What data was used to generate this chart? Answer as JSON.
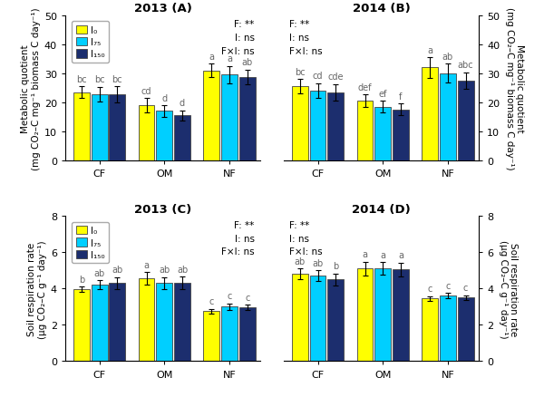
{
  "colors": [
    "#FFFF00",
    "#00CFFF",
    "#1C2E6E"
  ],
  "categories": [
    "CF",
    "OM",
    "NF"
  ],
  "bar_width": 0.22,
  "panel_A": {
    "title": "2013 (A)",
    "ylabel": "Metabolic quotient\n(mg CO₂–C mg⁻¹ biomass C day⁻¹)",
    "ylim": [
      0,
      50
    ],
    "yticks": [
      0,
      10,
      20,
      30,
      40,
      50
    ],
    "stats_text": "F: **\nI: ns\nF×I: ns",
    "stats_align": "right",
    "has_legend": true,
    "values": [
      [
        23.5,
        22.8,
        22.7
      ],
      [
        19.0,
        17.0,
        15.5
      ],
      [
        31.0,
        29.5,
        28.8
      ]
    ],
    "errors": [
      [
        2.0,
        2.5,
        2.8
      ],
      [
        2.5,
        2.0,
        1.8
      ],
      [
        2.2,
        3.0,
        2.5
      ]
    ],
    "labels": [
      [
        "bc",
        "bc",
        "bc"
      ],
      [
        "cd",
        "d",
        "d"
      ],
      [
        "a",
        "a",
        "ab"
      ]
    ]
  },
  "panel_B": {
    "title": "2014 (B)",
    "ylabel": "Metabolic quotient\n(mg CO₂–C mg⁻¹ biomass C day⁻¹)",
    "ylim": [
      0,
      50
    ],
    "yticks": [
      0,
      10,
      20,
      30,
      40,
      50
    ],
    "stats_text": "F: **\nI: ns\nF×I: ns",
    "stats_align": "left",
    "has_legend": false,
    "values": [
      [
        25.5,
        24.0,
        23.5
      ],
      [
        20.5,
        18.5,
        17.5
      ],
      [
        32.0,
        30.0,
        27.5
      ]
    ],
    "errors": [
      [
        2.5,
        2.5,
        2.8
      ],
      [
        2.2,
        2.0,
        2.0
      ],
      [
        3.5,
        3.2,
        2.8
      ]
    ],
    "labels": [
      [
        "bc",
        "cd",
        "cde"
      ],
      [
        "def",
        "ef",
        "f"
      ],
      [
        "a",
        "ab",
        "abc"
      ]
    ]
  },
  "panel_C": {
    "title": "2013 (C)",
    "ylabel": "Soil respiration rate\n(μg CO₂–C g⁻¹ day⁻¹)",
    "ylim": [
      0,
      8
    ],
    "yticks": [
      0,
      2,
      4,
      6,
      8
    ],
    "stats_text": "F: **\nI: ns\nF×I: ns",
    "stats_align": "right",
    "has_legend": true,
    "values": [
      [
        3.95,
        4.2,
        4.3
      ],
      [
        4.55,
        4.3,
        4.3
      ],
      [
        2.75,
        3.0,
        2.95
      ]
    ],
    "errors": [
      [
        0.15,
        0.25,
        0.32
      ],
      [
        0.35,
        0.32,
        0.35
      ],
      [
        0.12,
        0.18,
        0.15
      ]
    ],
    "labels": [
      [
        "b",
        "ab",
        "ab"
      ],
      [
        "a",
        "ab",
        "ab"
      ],
      [
        "c",
        "c",
        "c"
      ]
    ]
  },
  "panel_D": {
    "title": "2014 (D)",
    "ylabel": "Soil respiration rate\n(μg CO₂–C g⁻¹ day⁻¹)",
    "ylim": [
      0,
      8
    ],
    "yticks": [
      0,
      2,
      4,
      6,
      8
    ],
    "stats_text": "F: **\nI: ns\nF×I: ns",
    "stats_align": "left",
    "has_legend": false,
    "values": [
      [
        4.8,
        4.7,
        4.5
      ],
      [
        5.1,
        5.1,
        5.05
      ],
      [
        3.45,
        3.6,
        3.5
      ]
    ],
    "errors": [
      [
        0.3,
        0.3,
        0.32
      ],
      [
        0.38,
        0.35,
        0.38
      ],
      [
        0.12,
        0.15,
        0.12
      ]
    ],
    "labels": [
      [
        "ab",
        "ab",
        "b"
      ],
      [
        "a",
        "a",
        "a"
      ],
      [
        "c",
        "c",
        "c"
      ]
    ]
  },
  "legend_labels": [
    "I₀",
    "I₇₅",
    "I₁₅₀"
  ],
  "edgecolor": "#444444",
  "label_fontsize": 7.0,
  "tick_fontsize": 8,
  "title_fontsize": 9.5,
  "axis_label_fontsize": 7.5,
  "stats_fontsize": 7.5
}
